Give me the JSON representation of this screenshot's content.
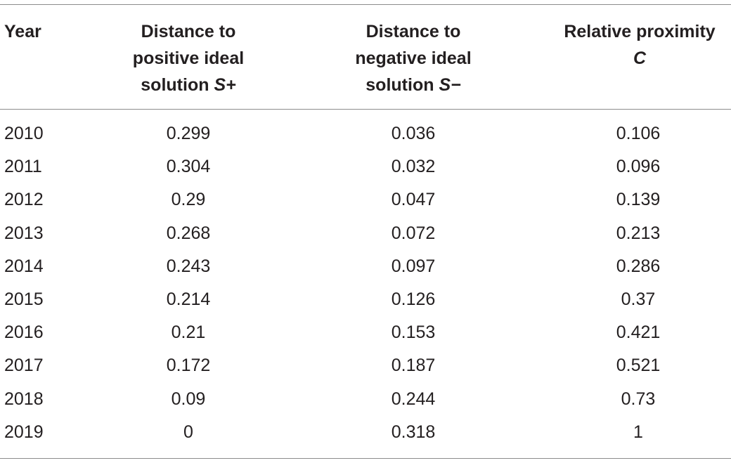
{
  "table": {
    "headers": {
      "year": "Year",
      "s_plus": {
        "line1": "Distance to",
        "line2": "positive ideal",
        "line3_text": "solution ",
        "line3_symbol": "S+"
      },
      "s_minus": {
        "line1": "Distance to",
        "line2": "negative ideal",
        "line3_text": "solution ",
        "line3_symbol": "S−"
      },
      "c": {
        "line1": "Relative proximity",
        "line2_symbol": "C"
      }
    },
    "rows": [
      {
        "year": "2010",
        "s_plus": "0.299",
        "s_minus": "0.036",
        "c": "0.106"
      },
      {
        "year": "2011",
        "s_plus": "0.304",
        "s_minus": "0.032",
        "c": "0.096"
      },
      {
        "year": "2012",
        "s_plus": "0.29",
        "s_minus": "0.047",
        "c": "0.139"
      },
      {
        "year": "2013",
        "s_plus": "0.268",
        "s_minus": "0.072",
        "c": "0.213"
      },
      {
        "year": "2014",
        "s_plus": "0.243",
        "s_minus": "0.097",
        "c": "0.286"
      },
      {
        "year": "2015",
        "s_plus": "0.214",
        "s_minus": "0.126",
        "c": "0.37"
      },
      {
        "year": "2016",
        "s_plus": "0.21",
        "s_minus": "0.153",
        "c": "0.421"
      },
      {
        "year": "2017",
        "s_plus": "0.172",
        "s_minus": "0.187",
        "c": "0.521"
      },
      {
        "year": "2018",
        "s_plus": "0.09",
        "s_minus": "0.244",
        "c": "0.73"
      },
      {
        "year": "2019",
        "s_plus": "0",
        "s_minus": "0.318",
        "c": "1"
      }
    ]
  }
}
